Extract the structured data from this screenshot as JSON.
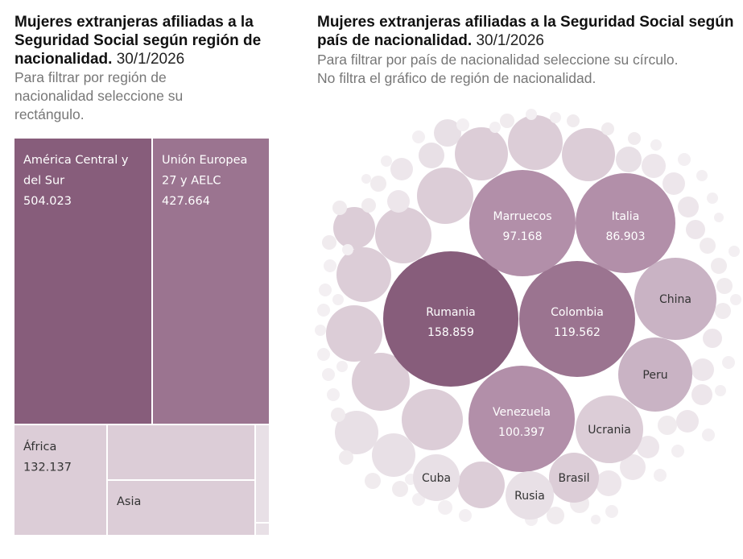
{
  "left_panel": {
    "title_bold": "Mujeres extranjeras afiliadas a la Seguridad Social según región de nacionalidad.",
    "title_date": "30/1/2026",
    "subtitle": "Para filtrar por región de nacionalidad seleccione su rectángulo."
  },
  "right_panel": {
    "title_bold": "Mujeres extranjeras afiliadas a la Seguridad Social según país de nacionalidad.",
    "title_date": "30/1/2026",
    "subtitle_line1": "Para filtrar por país de nacionalidad seleccione su círculo.",
    "subtitle_line2": "No filtra el gráfico de región de nacionalidad."
  },
  "colors": {
    "dark": "#875d7b",
    "medium": "#9b7490",
    "light_medium": "#b28fa9",
    "light": "#c9b3c4",
    "pale": "#dccdd7",
    "very_pale": "#e8e0e6",
    "text_dark_bg": "#ffffff",
    "text_light_bg": "#333333"
  },
  "chart_data": [
    {
      "type": "treemap",
      "items": [
        {
          "label_lines": [
            "América Central y",
            "del Sur"
          ],
          "value": 504023,
          "value_text": "504.023",
          "shade": "dark"
        },
        {
          "label_lines": [
            "Unión Europea",
            "27 y AELC"
          ],
          "value": 427664,
          "value_text": "427.664",
          "shade": "medium"
        },
        {
          "label_lines": [
            "África"
          ],
          "value": 132137,
          "value_text": "132.137",
          "shade": "pale"
        },
        {
          "label_lines": [],
          "value_text": "",
          "shade": "pale"
        },
        {
          "label_lines": [
            "Asia"
          ],
          "value_text": "",
          "shade": "pale"
        },
        {
          "label_lines": [],
          "value_text": "",
          "shade": "very_pale"
        },
        {
          "label_lines": [],
          "value_text": "",
          "shade": "very_pale"
        }
      ]
    },
    {
      "type": "packed-bubble",
      "items": [
        {
          "label": "Rumania",
          "value": 158859,
          "value_text": "158.859",
          "shade": "dark"
        },
        {
          "label": "Colombia",
          "value": 119562,
          "value_text": "119.562",
          "shade": "medium"
        },
        {
          "label": "Venezuela",
          "value": 100397,
          "value_text": "100.397",
          "shade": "light_medium"
        },
        {
          "label": "Marruecos",
          "value": 97168,
          "value_text": "97.168",
          "shade": "light_medium"
        },
        {
          "label": "Italia",
          "value": 86903,
          "value_text": "86.903",
          "shade": "light_medium"
        },
        {
          "label": "China",
          "value_text": "",
          "shade": "light"
        },
        {
          "label": "Peru",
          "value_text": "",
          "shade": "light"
        },
        {
          "label": "Ucrania",
          "value_text": "",
          "shade": "pale"
        },
        {
          "label": "Brasil",
          "value_text": "",
          "shade": "pale"
        },
        {
          "label": "Rusia",
          "value_text": "",
          "shade": "very_pale"
        },
        {
          "label": "Cuba",
          "value_text": "",
          "shade": "very_pale"
        }
      ]
    }
  ]
}
